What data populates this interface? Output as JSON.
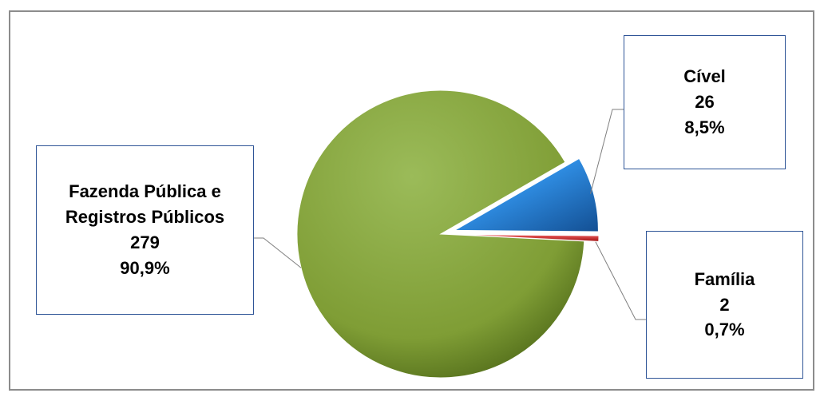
{
  "chart_data": {
    "type": "pie",
    "title": "",
    "exploded": true,
    "slices": [
      {
        "name": "Cível",
        "value": 26,
        "percent": "8,5%",
        "count": "26",
        "color": "#2e8be0"
      },
      {
        "name": "Família",
        "value": 2,
        "percent": "0,7%",
        "count": "2",
        "color": "#d42020"
      },
      {
        "name": "Fazenda Pública e Registros Públicos",
        "value": 279,
        "percent": "90,9%",
        "count": "279",
        "color": "#7f9d35"
      }
    ]
  },
  "labels": {
    "civel": {
      "name": "Cível",
      "count": "26",
      "percent": "8,5%"
    },
    "familia": {
      "name": "Família",
      "count": "2",
      "percent": "0,7%"
    },
    "fazenda": {
      "line1": "Fazenda Pública e",
      "line2": "Registros Públicos",
      "count": "279",
      "percent": "90,9%"
    }
  }
}
